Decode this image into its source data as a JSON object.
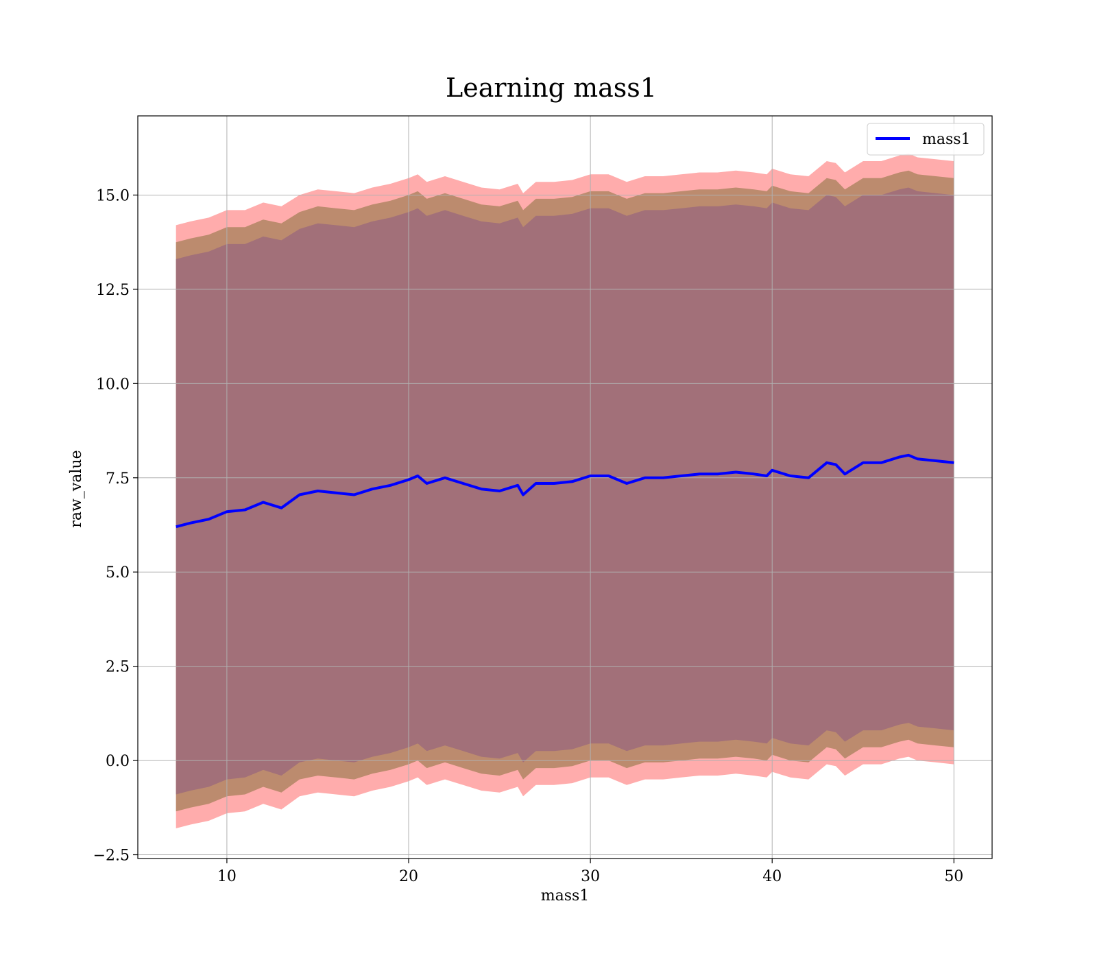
{
  "chart_data": {
    "type": "area",
    "title": "Learning mass1",
    "xlabel": "mass1",
    "ylabel": "raw_value",
    "xlim": [
      5.1,
      52.1
    ],
    "ylim": [
      -2.6,
      17.1
    ],
    "grid": true,
    "legend_position": "top-right",
    "x_ticks": [
      10,
      20,
      30,
      40,
      50
    ],
    "x_tick_labels": [
      "10",
      "20",
      "30",
      "40",
      "50"
    ],
    "y_ticks": [
      -2.5,
      0.0,
      2.5,
      5.0,
      7.5,
      10.0,
      12.5,
      15.0
    ],
    "y_tick_labels": [
      "−2.5",
      "0.0",
      "2.5",
      "5.0",
      "7.5",
      "10.0",
      "12.5",
      "15.0"
    ],
    "colors": {
      "line": "#0000ff",
      "band_outer": "#ff9090",
      "band_middle": "#b8896a",
      "band_inner": "#a27079"
    },
    "series": [
      {
        "name": "mass1",
        "x": [
          7.2,
          8,
          9,
          10,
          11,
          12,
          13,
          14,
          15,
          16,
          17,
          18,
          19,
          20,
          20.5,
          21,
          22,
          23,
          24,
          25,
          26,
          26.3,
          27,
          28,
          29,
          30,
          31,
          32,
          33,
          34,
          35,
          36,
          37,
          38,
          39,
          39.7,
          40,
          41,
          42,
          43,
          43.5,
          44,
          45,
          46,
          47,
          47.5,
          48,
          49,
          50
        ],
        "values": [
          6.2,
          6.3,
          6.4,
          6.6,
          6.65,
          6.85,
          6.7,
          7.05,
          7.15,
          7.1,
          7.05,
          7.2,
          7.3,
          7.45,
          7.55,
          7.35,
          7.5,
          7.35,
          7.2,
          7.15,
          7.3,
          7.05,
          7.35,
          7.35,
          7.4,
          7.55,
          7.55,
          7.35,
          7.5,
          7.5,
          7.55,
          7.6,
          7.6,
          7.65,
          7.6,
          7.55,
          7.7,
          7.55,
          7.5,
          7.9,
          7.85,
          7.6,
          7.9,
          7.9,
          8.05,
          8.1,
          8.0,
          7.95,
          7.9
        ]
      }
    ],
    "bands": {
      "x": [
        7.2,
        8,
        9,
        10,
        11,
        12,
        13,
        14,
        15,
        16,
        17,
        18,
        19,
        20,
        20.5,
        21,
        22,
        23,
        24,
        25,
        26,
        26.3,
        27,
        28,
        29,
        30,
        31,
        32,
        33,
        34,
        35,
        36,
        37,
        38,
        39,
        39.7,
        40,
        41,
        42,
        43,
        43.5,
        44,
        45,
        46,
        47,
        47.5,
        48,
        49,
        50
      ],
      "outer_upper": [
        14.2,
        14.3,
        14.4,
        14.6,
        14.6,
        14.8,
        14.7,
        15.0,
        15.15,
        15.1,
        15.05,
        15.2,
        15.3,
        15.45,
        15.55,
        15.35,
        15.5,
        15.35,
        15.2,
        15.15,
        15.3,
        15.05,
        15.35,
        15.35,
        15.4,
        15.55,
        15.55,
        15.35,
        15.5,
        15.5,
        15.55,
        15.6,
        15.6,
        15.65,
        15.6,
        15.55,
        15.7,
        15.55,
        15.5,
        15.9,
        15.85,
        15.6,
        15.9,
        15.9,
        16.05,
        16.1,
        16.0,
        15.95,
        15.9
      ],
      "outer_lower": [
        -1.8,
        -1.7,
        -1.6,
        -1.4,
        -1.35,
        -1.15,
        -1.3,
        -0.95,
        -0.85,
        -0.9,
        -0.95,
        -0.8,
        -0.7,
        -0.55,
        -0.45,
        -0.65,
        -0.5,
        -0.65,
        -0.8,
        -0.85,
        -0.7,
        -0.95,
        -0.65,
        -0.65,
        -0.6,
        -0.45,
        -0.45,
        -0.65,
        -0.5,
        -0.5,
        -0.45,
        -0.4,
        -0.4,
        -0.35,
        -0.4,
        -0.45,
        -0.3,
        -0.45,
        -0.5,
        -0.1,
        -0.15,
        -0.4,
        -0.1,
        -0.1,
        0.05,
        0.1,
        0.0,
        -0.05,
        -0.1
      ],
      "middle_upper": [
        13.75,
        13.85,
        13.95,
        14.15,
        14.15,
        14.35,
        14.25,
        14.55,
        14.7,
        14.65,
        14.6,
        14.75,
        14.85,
        15.0,
        15.1,
        14.9,
        15.05,
        14.9,
        14.75,
        14.7,
        14.85,
        14.6,
        14.9,
        14.9,
        14.95,
        15.1,
        15.1,
        14.9,
        15.05,
        15.05,
        15.1,
        15.15,
        15.15,
        15.2,
        15.15,
        15.1,
        15.25,
        15.1,
        15.05,
        15.45,
        15.4,
        15.15,
        15.45,
        15.45,
        15.6,
        15.65,
        15.55,
        15.5,
        15.45
      ],
      "middle_lower": [
        -1.35,
        -1.25,
        -1.15,
        -0.95,
        -0.9,
        -0.7,
        -0.85,
        -0.5,
        -0.4,
        -0.45,
        -0.5,
        -0.35,
        -0.25,
        -0.1,
        0.0,
        -0.2,
        -0.05,
        -0.2,
        -0.35,
        -0.4,
        -0.25,
        -0.5,
        -0.2,
        -0.2,
        -0.15,
        0.0,
        0.0,
        -0.2,
        -0.05,
        -0.05,
        0.0,
        0.05,
        0.05,
        0.1,
        0.05,
        0.0,
        0.15,
        0.0,
        -0.05,
        0.35,
        0.3,
        0.05,
        0.35,
        0.35,
        0.5,
        0.55,
        0.45,
        0.4,
        0.35
      ],
      "inner_upper": [
        13.3,
        13.4,
        13.5,
        13.7,
        13.7,
        13.9,
        13.8,
        14.1,
        14.25,
        14.2,
        14.15,
        14.3,
        14.4,
        14.55,
        14.65,
        14.45,
        14.6,
        14.45,
        14.3,
        14.25,
        14.4,
        14.15,
        14.45,
        14.45,
        14.5,
        14.65,
        14.65,
        14.45,
        14.6,
        14.6,
        14.65,
        14.7,
        14.7,
        14.75,
        14.7,
        14.65,
        14.8,
        14.65,
        14.6,
        15.0,
        14.95,
        14.7,
        15.0,
        15.0,
        15.15,
        15.2,
        15.1,
        15.05,
        15.0
      ],
      "inner_lower": [
        -0.9,
        -0.8,
        -0.7,
        -0.5,
        -0.45,
        -0.25,
        -0.4,
        -0.05,
        0.05,
        0.0,
        -0.05,
        0.1,
        0.2,
        0.35,
        0.45,
        0.25,
        0.4,
        0.25,
        0.1,
        0.05,
        0.2,
        -0.05,
        0.25,
        0.25,
        0.3,
        0.45,
        0.45,
        0.25,
        0.4,
        0.4,
        0.45,
        0.5,
        0.5,
        0.55,
        0.5,
        0.45,
        0.6,
        0.45,
        0.4,
        0.8,
        0.75,
        0.5,
        0.8,
        0.8,
        0.95,
        1.0,
        0.9,
        0.85,
        0.8
      ]
    }
  }
}
